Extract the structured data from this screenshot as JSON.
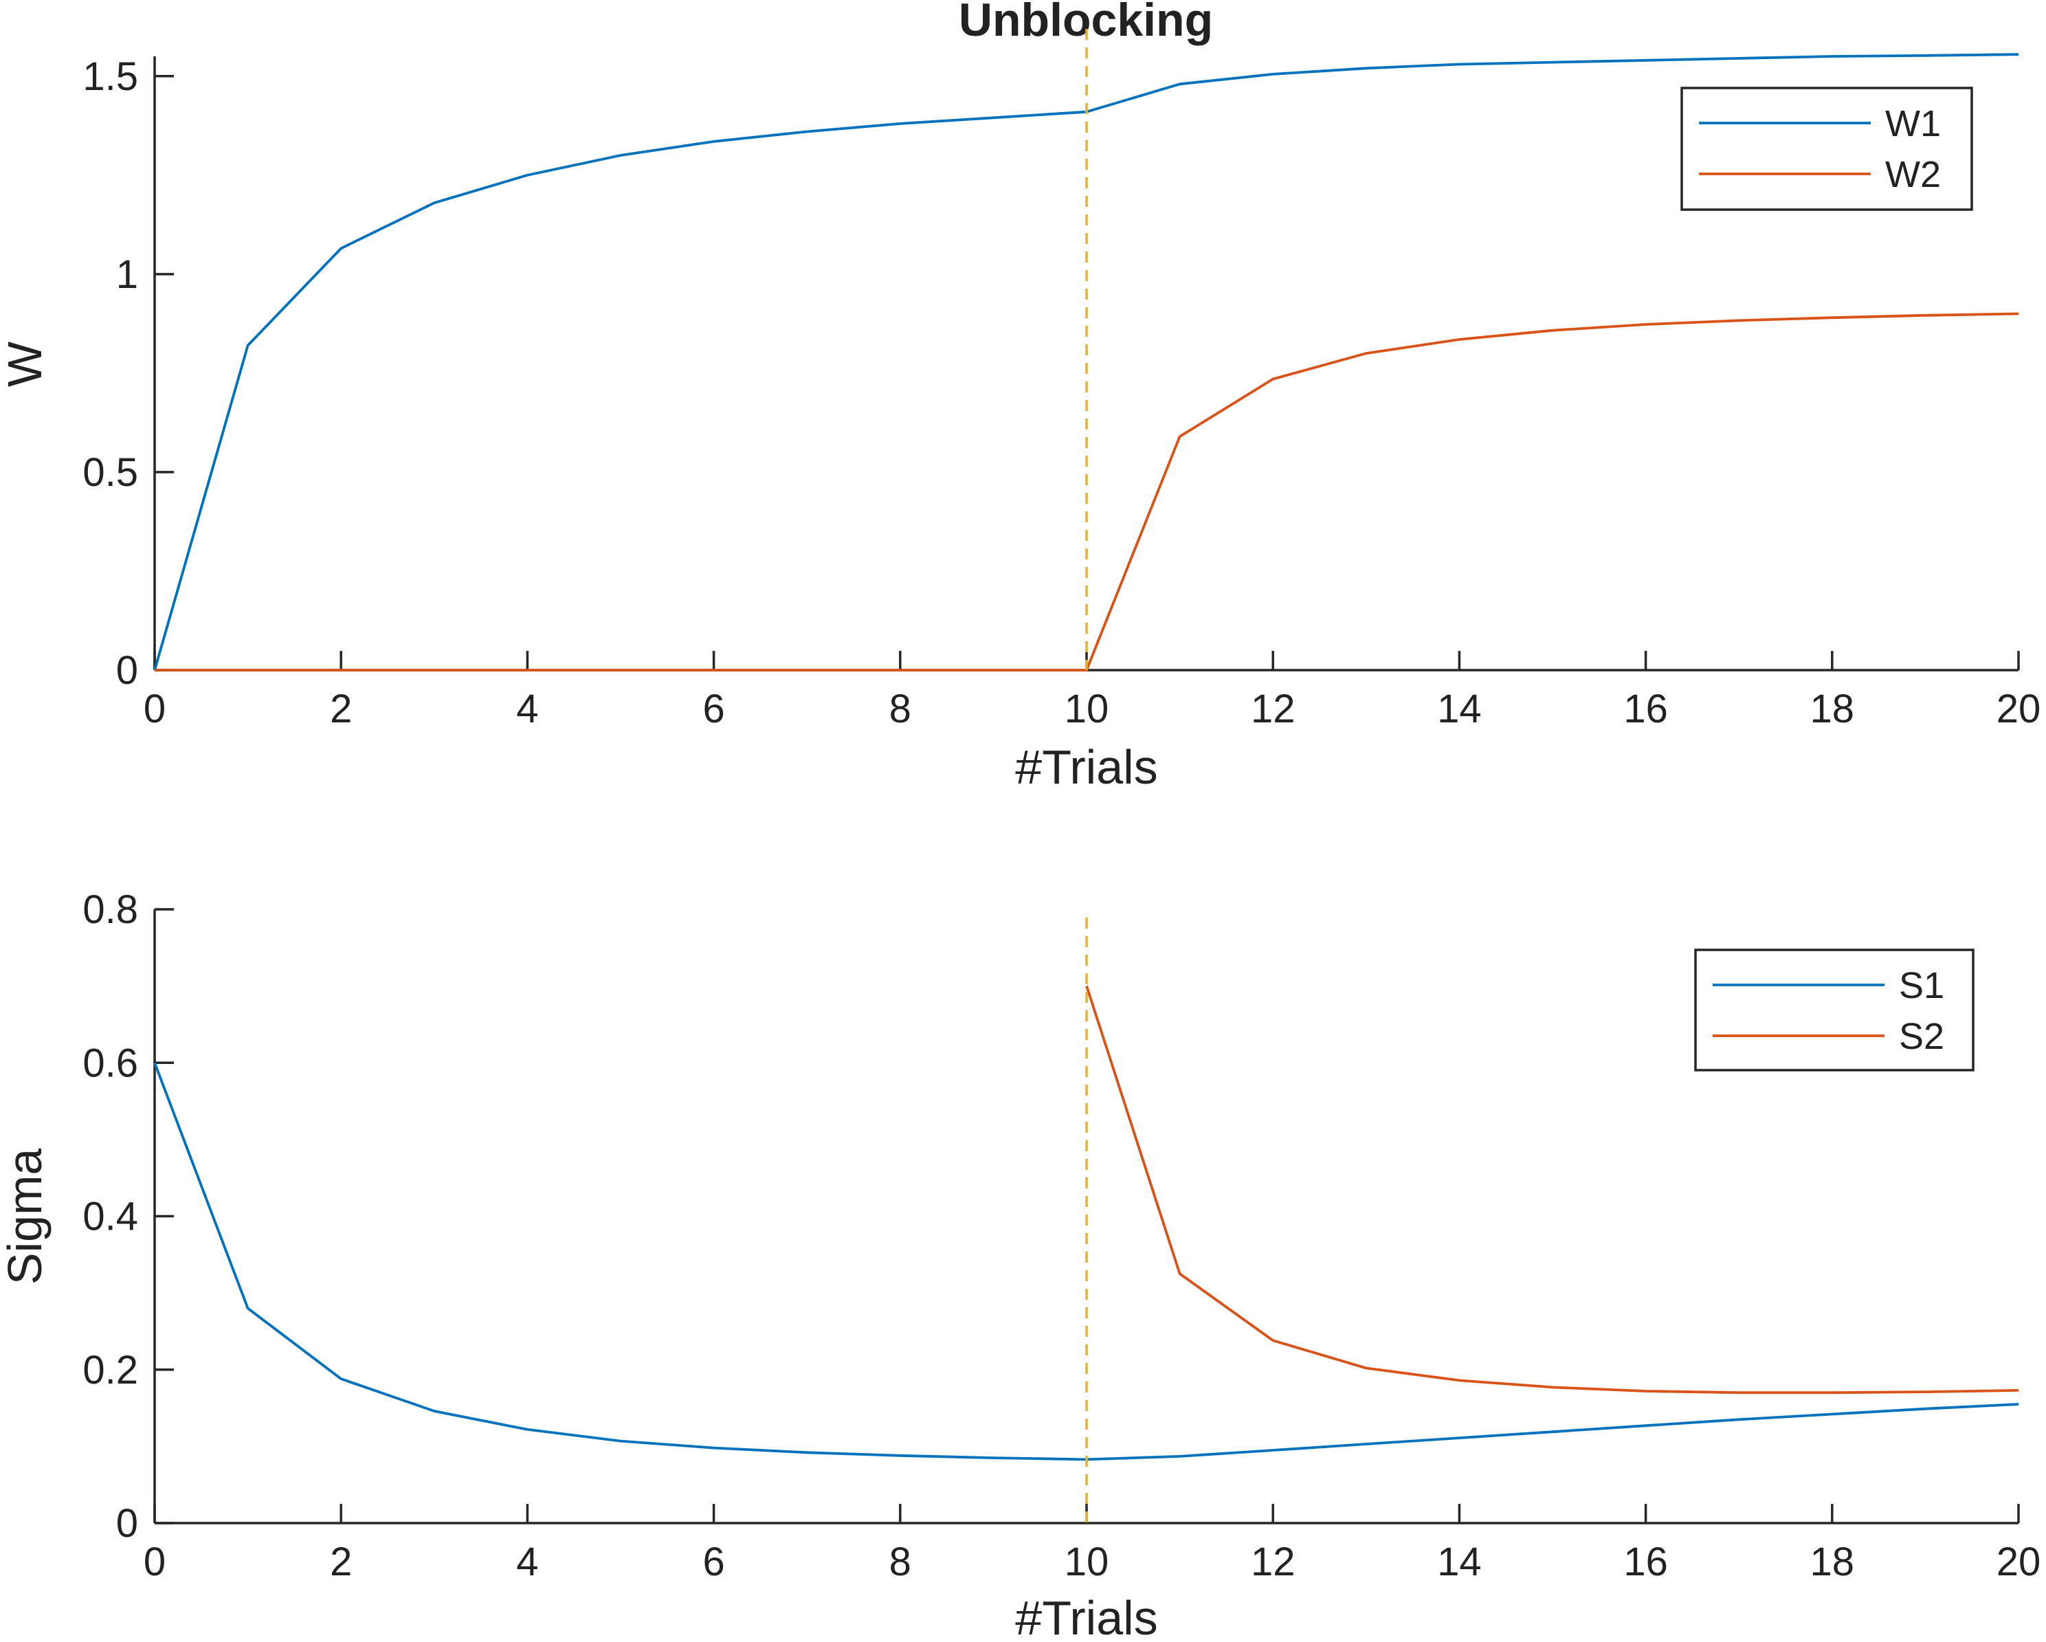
{
  "colors": {
    "series1": "#0072BD",
    "series2": "#D95319",
    "event_line": "#EDB120",
    "axis": "#262626"
  },
  "chart_data": [
    {
      "type": "line",
      "title": "Unblocking",
      "xlabel": "#Trials",
      "ylabel": "W",
      "xlim": [
        0,
        20
      ],
      "ylim": [
        0,
        1.55
      ],
      "xticks": [
        0,
        2,
        4,
        6,
        8,
        10,
        12,
        14,
        16,
        18,
        20
      ],
      "xtick_labels": [
        "0",
        "2",
        "4",
        "6",
        "8",
        "10",
        "12",
        "14",
        "16",
        "18",
        "20"
      ],
      "yticks": [
        0,
        0.5,
        1,
        1.5
      ],
      "ytick_labels": [
        "0",
        "0.5",
        "1",
        "1.5"
      ],
      "grid": false,
      "legend_position": "top-right",
      "vertical_line": {
        "x": 10,
        "style": "dashed"
      },
      "series": [
        {
          "name": "W1",
          "color_key": "series1",
          "x": [
            0,
            1,
            2,
            3,
            4,
            5,
            6,
            7,
            8,
            9,
            10,
            11,
            12,
            13,
            14,
            15,
            16,
            17,
            18,
            19,
            20
          ],
          "y": [
            0,
            0.82,
            1.065,
            1.18,
            1.25,
            1.3,
            1.335,
            1.36,
            1.38,
            1.395,
            1.41,
            1.48,
            1.505,
            1.52,
            1.53,
            1.535,
            1.54,
            1.545,
            1.55,
            1.552,
            1.555
          ]
        },
        {
          "name": "W2",
          "color_key": "series2",
          "x": [
            0,
            1,
            2,
            3,
            4,
            5,
            6,
            7,
            8,
            9,
            10,
            11,
            12,
            13,
            14,
            15,
            16,
            17,
            18,
            19,
            20
          ],
          "y": [
            0,
            0,
            0,
            0,
            0,
            0,
            0,
            0,
            0,
            0,
            0,
            0.59,
            0.735,
            0.8,
            0.835,
            0.858,
            0.873,
            0.883,
            0.89,
            0.896,
            0.9
          ]
        }
      ]
    },
    {
      "type": "line",
      "title": "",
      "xlabel": "#Trials",
      "ylabel": "Sigma",
      "xlim": [
        0,
        20
      ],
      "ylim": [
        0,
        0.8
      ],
      "xticks": [
        0,
        2,
        4,
        6,
        8,
        10,
        12,
        14,
        16,
        18,
        20
      ],
      "xtick_labels": [
        "0",
        "2",
        "4",
        "6",
        "8",
        "10",
        "12",
        "14",
        "16",
        "18",
        "20"
      ],
      "yticks": [
        0,
        0.2,
        0.4,
        0.6,
        0.8
      ],
      "ytick_labels": [
        "0",
        "0.2",
        "0.4",
        "0.6",
        "0.8"
      ],
      "grid": false,
      "legend_position": "top-right",
      "vertical_line": {
        "x": 10,
        "style": "dashed"
      },
      "series": [
        {
          "name": "S1",
          "color_key": "series1",
          "x": [
            0,
            1,
            2,
            3,
            4,
            5,
            6,
            7,
            8,
            9,
            10,
            11,
            12,
            13,
            14,
            15,
            16,
            17,
            18,
            19,
            20
          ],
          "y": [
            0.6,
            0.28,
            0.188,
            0.146,
            0.122,
            0.107,
            0.098,
            0.092,
            0.088,
            0.085,
            0.083,
            0.087,
            0.095,
            0.103,
            0.111,
            0.119,
            0.127,
            0.135,
            0.142,
            0.149,
            0.155
          ]
        },
        {
          "name": "S2",
          "color_key": "series2",
          "x": [
            10,
            11,
            12,
            13,
            14,
            15,
            16,
            17,
            18,
            19,
            20
          ],
          "y": [
            0.7,
            0.325,
            0.238,
            0.202,
            0.186,
            0.177,
            0.172,
            0.17,
            0.17,
            0.171,
            0.173
          ]
        }
      ]
    }
  ]
}
